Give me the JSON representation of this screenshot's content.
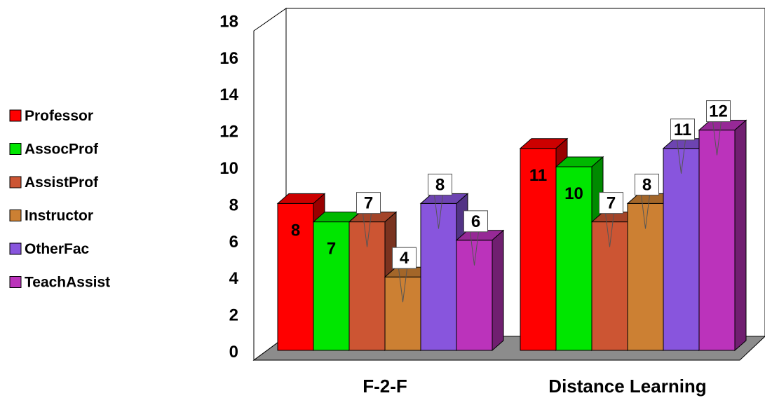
{
  "chart_data": {
    "type": "bar",
    "categories": [
      "F-2-F",
      "Distance Learning"
    ],
    "series": [
      {
        "name": "Professor",
        "values": [
          8,
          11
        ],
        "color": "#ff0000"
      },
      {
        "name": "AssocProf",
        "values": [
          7,
          10
        ],
        "color": "#00e600"
      },
      {
        "name": "AssistProf",
        "values": [
          7,
          7
        ],
        "color": "#cc5533"
      },
      {
        "name": "Instructor",
        "values": [
          4,
          8
        ],
        "color": "#cc8033"
      },
      {
        "name": "OtherFac",
        "values": [
          8,
          11
        ],
        "color": "#8855dd"
      },
      {
        "name": "TeachAssist",
        "values": [
          6,
          12
        ],
        "color": "#bb33bb"
      }
    ],
    "yticks": [
      "0",
      "2",
      "4",
      "6",
      "8",
      "10",
      "12",
      "14",
      "16",
      "18"
    ],
    "ylim": [
      0,
      18
    ],
    "legend": "left",
    "grid": false,
    "three_d": true
  }
}
